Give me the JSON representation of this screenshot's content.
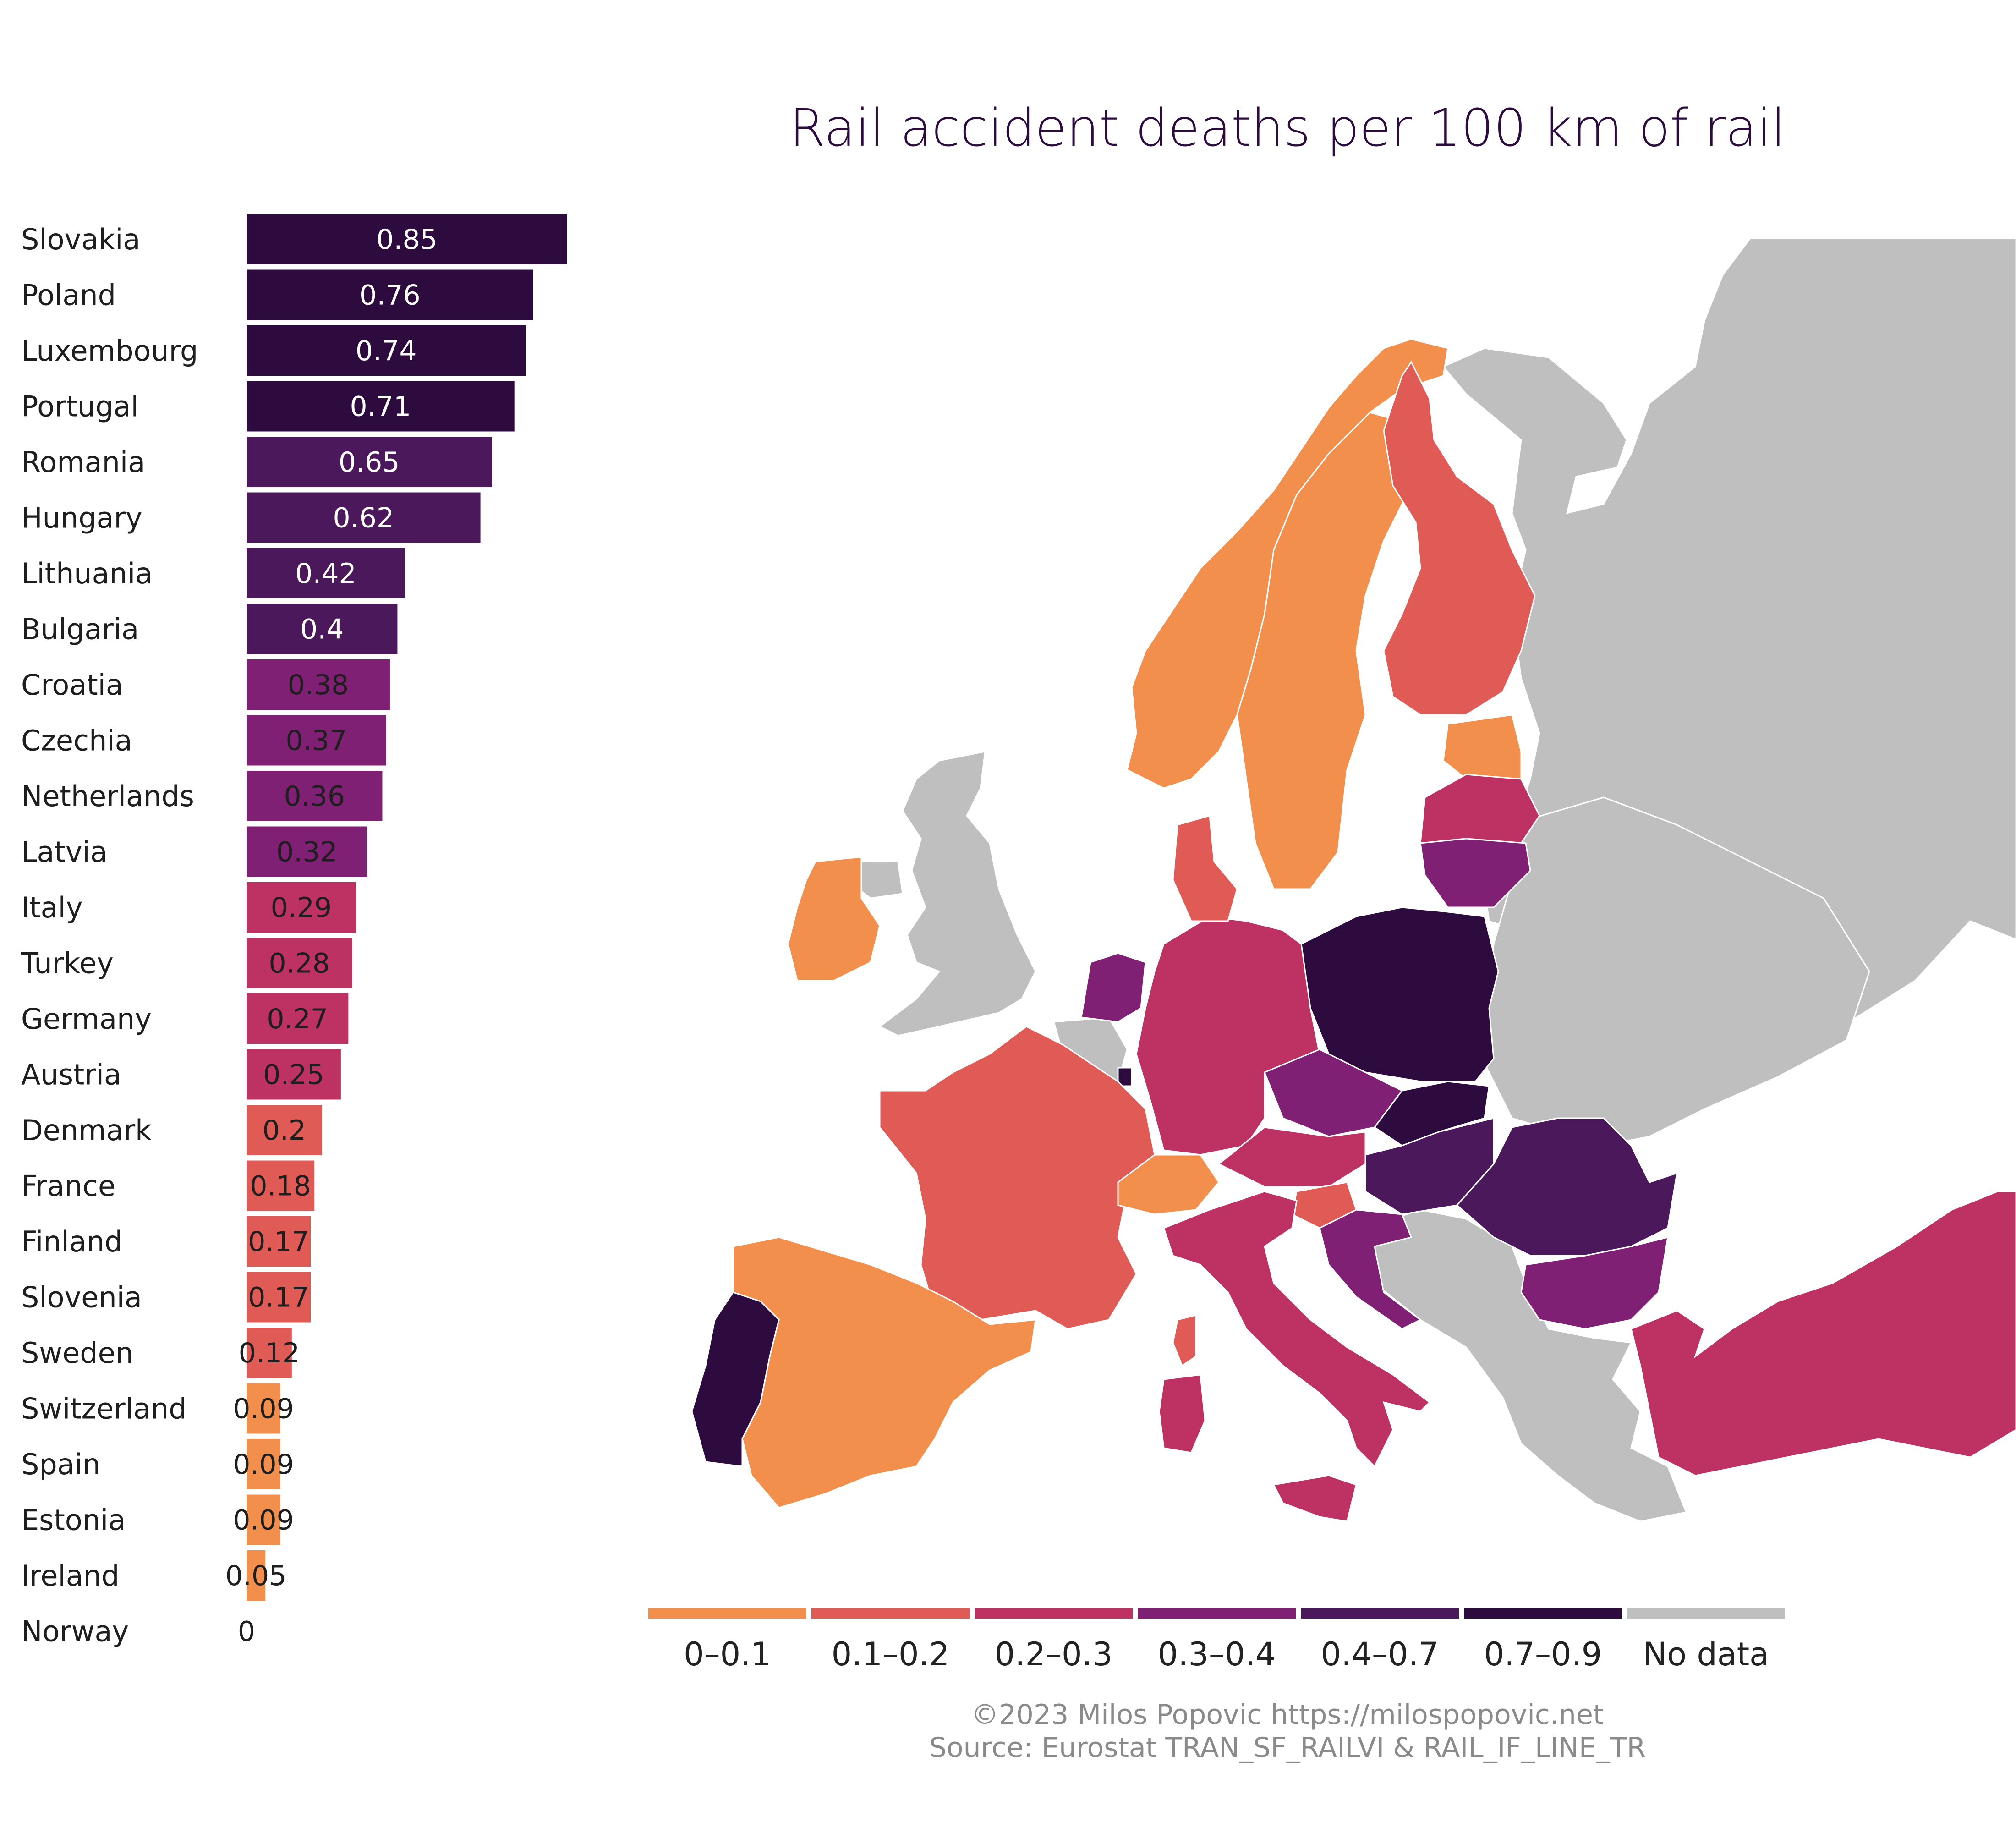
{
  "chart_data": [
    {
      "type": "bar",
      "orientation": "horizontal",
      "title": "Rail accident deaths per 100 km of rail",
      "categories": [
        "Slovakia",
        "Poland",
        "Luxembourg",
        "Portugal",
        "Romania",
        "Hungary",
        "Lithuania",
        "Bulgaria",
        "Croatia",
        "Czechia",
        "Netherlands",
        "Latvia",
        "Italy",
        "Turkey",
        "Germany",
        "Austria",
        "Denmark",
        "France",
        "Finland",
        "Slovenia",
        "Sweden",
        "Switzerland",
        "Spain",
        "Estonia",
        "Ireland",
        "Norway"
      ],
      "values": [
        0.85,
        0.76,
        0.74,
        0.71,
        0.65,
        0.62,
        0.42,
        0.4,
        0.38,
        0.37,
        0.36,
        0.32,
        0.29,
        0.28,
        0.27,
        0.25,
        0.2,
        0.18,
        0.17,
        0.17,
        0.12,
        0.09,
        0.09,
        0.09,
        0.05,
        0
      ],
      "value_labels": [
        "0.85",
        "0.76",
        "0.74",
        "0.71",
        "0.65",
        "0.62",
        "0.42",
        "0.4",
        "0.38",
        "0.37",
        "0.36",
        "0.32",
        "0.29",
        "0.28",
        "0.27",
        "0.25",
        "0.2",
        "0.18",
        "0.17",
        "0.17",
        "0.12",
        "0.09",
        "0.09",
        "0.09",
        "0.05",
        "0"
      ],
      "xlim": [
        0,
        0.85
      ],
      "grid": false,
      "legend": "none"
    },
    {
      "type": "choropleth",
      "title": "Rail accident deaths per 100 km of rail",
      "legend": {
        "placement": "bottom",
        "bins": [
          {
            "label": "0–0.1",
            "color": "#f28f4c"
          },
          {
            "label": "0.1–0.2",
            "color": "#e05a56"
          },
          {
            "label": "0.2–0.3",
            "color": "#bd3262"
          },
          {
            "label": "0.3–0.4",
            "color": "#7f2074"
          },
          {
            "label": "0.4–0.7",
            "color": "#4c185c"
          },
          {
            "label": "0.7–0.9",
            "color": "#2e0b3f"
          },
          {
            "label": "No data",
            "color": "#bfbfbf"
          }
        ]
      },
      "regions": [
        {
          "name": "Slovakia",
          "value": 0.85
        },
        {
          "name": "Poland",
          "value": 0.76
        },
        {
          "name": "Luxembourg",
          "value": 0.74
        },
        {
          "name": "Portugal",
          "value": 0.71
        },
        {
          "name": "Romania",
          "value": 0.65
        },
        {
          "name": "Hungary",
          "value": 0.62
        },
        {
          "name": "Lithuania",
          "value": 0.42
        },
        {
          "name": "Bulgaria",
          "value": 0.4
        },
        {
          "name": "Croatia",
          "value": 0.38
        },
        {
          "name": "Czechia",
          "value": 0.37
        },
        {
          "name": "Netherlands",
          "value": 0.36
        },
        {
          "name": "Latvia",
          "value": 0.32
        },
        {
          "name": "Italy",
          "value": 0.29
        },
        {
          "name": "Turkey",
          "value": 0.28
        },
        {
          "name": "Germany",
          "value": 0.27
        },
        {
          "name": "Austria",
          "value": 0.25
        },
        {
          "name": "Denmark",
          "value": 0.2
        },
        {
          "name": "France",
          "value": 0.18
        },
        {
          "name": "Finland",
          "value": 0.17
        },
        {
          "name": "Slovenia",
          "value": 0.17
        },
        {
          "name": "Sweden",
          "value": 0.12
        },
        {
          "name": "Switzerland",
          "value": 0.09
        },
        {
          "name": "Spain",
          "value": 0.09
        },
        {
          "name": "Estonia",
          "value": 0.09
        },
        {
          "name": "Ireland",
          "value": 0.05
        },
        {
          "name": "Norway",
          "value": 0
        }
      ]
    }
  ],
  "footer": {
    "credit": "©2023 Milos Popovic https://milospopovic.net",
    "source": "Source: Eurostat TRAN_SF_RAILVI & RAIL_IF_LINE_TR"
  }
}
